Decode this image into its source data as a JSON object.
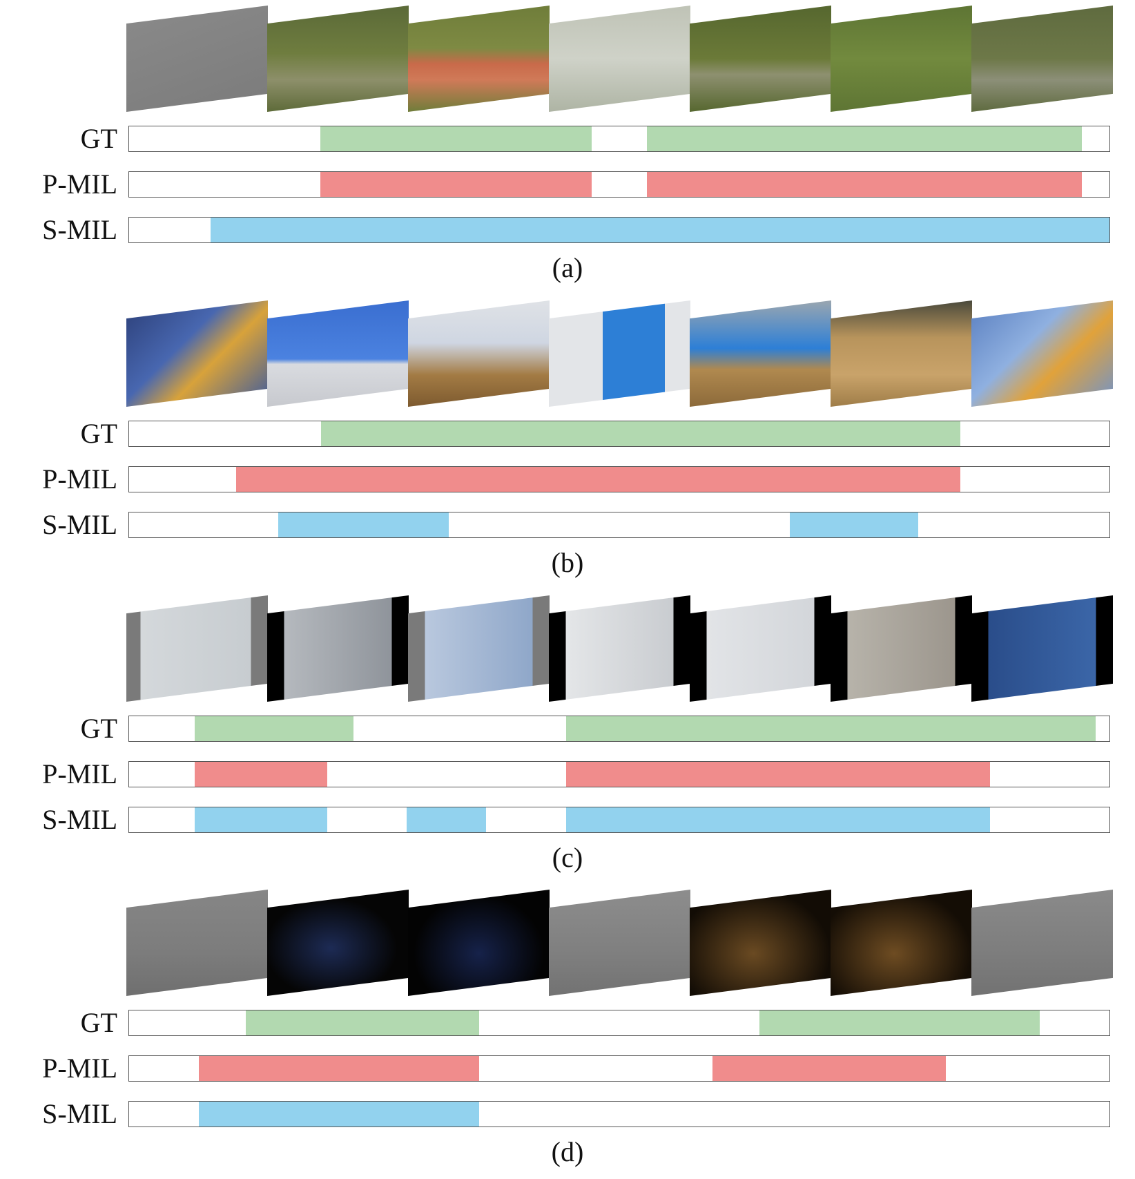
{
  "row_labels": [
    "GT",
    "P-MIL",
    "S-MIL"
  ],
  "colors": {
    "GT": "#b2d9b0",
    "P-MIL": "#f08c8c",
    "S-MIL": "#92d2ee"
  },
  "panels": [
    {
      "caption": "(a)",
      "frame_styles": [
        "linear-gradient(160deg,#8a8a8a,#7b7b7b)",
        "linear-gradient(180deg,#5b6a38,#6f7d3f 45%,#8d8f6a 70%,#5e6b39)",
        "linear-gradient(180deg,#6f7d3a,#7e8a43 40%,#c96a4a 55%,#d07a58 70%,#6f7d3a)",
        "linear-gradient(180deg,#bfc3b6,#cfd2c8 50%,#aeb4a4)",
        "linear-gradient(180deg,#56672f,#6b7a38 50%,#8e9070 65%,#56672f)",
        "linear-gradient(180deg,#5e7534,#728a3e 50%,#5e7534)",
        "linear-gradient(180deg,#5f6b3f,#6d7848 50%,#8c8f78 70%,#5f6b3f)"
      ],
      "rows": {
        "GT": [
          [
            0.195,
            0.472
          ],
          [
            0.528,
            0.972
          ]
        ],
        "P-MIL": [
          [
            0.195,
            0.472
          ],
          [
            0.528,
            0.972
          ]
        ],
        "S-MIL": [
          [
            0.083,
            1.0
          ]
        ]
      }
    },
    {
      "caption": "(b)",
      "frame_styles": [
        "linear-gradient(135deg,#2c3f78,#4867b0 40%,#d8a23a 60%,#3b5aa0)",
        "linear-gradient(180deg,#3a6ed0,#4b82e0 55%,#d9dbe0 60%,#c7c9ce)",
        "linear-gradient(180deg,#dfe2e6,#cfd6e2 40%,#a37b44 70%,#7d5a2f)",
        "linear-gradient(90deg,#e3e5e8 0%,#e3e5e8 38%,#2d7fd6 38%,#2d7fd6 82%,#e3e5e8 82%)",
        "linear-gradient(180deg,#9aa6b0,#2d7fd6 45%,#b0894f 65%,#8c6a3a)",
        "linear-gradient(180deg,#4a4a3c,#b8945c 35%,#c9a36a 70%,#9f7d48)",
        "linear-gradient(135deg,#5a7fc0,#8fb0e0 40%,#e1a23a 62%,#6d93cf)"
      ],
      "rows": {
        "GT": [
          [
            0.196,
            0.848
          ]
        ],
        "P-MIL": [
          [
            0.109,
            0.848
          ]
        ],
        "S-MIL": [
          [
            0.152,
            0.326
          ],
          [
            0.674,
            0.805
          ]
        ]
      }
    },
    {
      "caption": "(c)",
      "frame_styles": [
        "linear-gradient(90deg,#7a7a7a 0%,#7a7a7a 10%,#d4d8db 10%,#c7ccd0 88%,#7a7a7a 88%)",
        "linear-gradient(90deg,#000 0%,#000 12%,#b5b9be 12%,#8f949b 88%,#000 88%)",
        "linear-gradient(90deg,#7a7a7a 0%,#7a7a7a 12%,#b9c8de 12%,#8fa7c9 88%,#7a7a7a 88%)",
        "linear-gradient(90deg,#000 0%,#000 12%,#e4e6e8 12%,#c9ccd0 88%,#000 88%)",
        "linear-gradient(90deg,#000 0%,#000 12%,#e2e4e7 12%,#d3d6da 88%,#000 88%)",
        "linear-gradient(90deg,#000 0%,#000 12%,#b7b3aa 12%,#9c968d 88%,#000 88%)",
        "linear-gradient(90deg,#000 0%,#000 12%,#2a4d8a 12%,#3b66a8 88%,#000 88%)"
      ],
      "rows": {
        "GT": [
          [
            0.067,
            0.229
          ],
          [
            0.446,
            0.986
          ]
        ],
        "P-MIL": [
          [
            0.067,
            0.202
          ],
          [
            0.446,
            0.878
          ]
        ],
        "S-MIL": [
          [
            0.067,
            0.202
          ],
          [
            0.283,
            0.364
          ],
          [
            0.446,
            0.878
          ]
        ]
      }
    },
    {
      "caption": "(d)",
      "frame_styles": [
        "linear-gradient(180deg,#868686,#7c7c7c 60%,#6f6f6f)",
        "radial-gradient(ellipse at 45% 55%,#1d2b55,#050505 60%)",
        "radial-gradient(ellipse at 50% 60%,#16224a,#030303 65%)",
        "linear-gradient(180deg,#8d8d8d,#7f7f7f 60%,#727272)",
        "radial-gradient(ellipse at 45% 60%,#6a4a22,#120c05 70%)",
        "radial-gradient(ellipse at 45% 60%,#6e4c22,#140d05 70%)",
        "linear-gradient(180deg,#8a8a8a,#7d7d7d 60%,#727272)"
      ],
      "rows": {
        "GT": [
          [
            0.119,
            0.357
          ],
          [
            0.643,
            0.929
          ]
        ],
        "P-MIL": [
          [
            0.071,
            0.357
          ],
          [
            0.595,
            0.833
          ]
        ],
        "S-MIL": [
          [
            0.071,
            0.357
          ]
        ]
      }
    }
  ]
}
